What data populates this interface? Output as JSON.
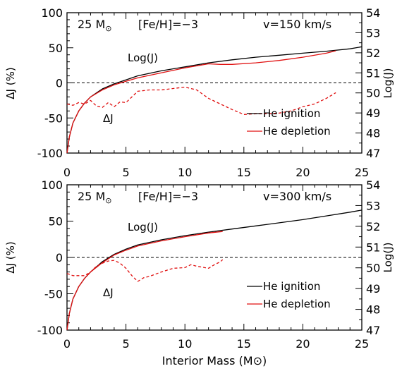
{
  "colors": {
    "axis": "#000000",
    "ignition": "#000000",
    "depletion": "#e01010",
    "zero_line": "#000000"
  },
  "chart_data": [
    {
      "type": "line",
      "panel_labels": {
        "mass": "25 M",
        "mass_symbol": "⊙",
        "metallicity": "[Fe/H]=−3",
        "velocity": "v=150 km/s"
      },
      "ylabel_left": "ΔJ (%)",
      "ylabel_right": "Log(J)",
      "xlabel": "",
      "xlim": [
        0,
        25
      ],
      "ylim_left": [
        -100,
        100
      ],
      "ylim_right": [
        47,
        54
      ],
      "x_ticks": [
        "0",
        "5",
        "10",
        "15",
        "20",
        "25"
      ],
      "left_ticks": [
        "-100",
        "-50",
        "0",
        "50",
        "100"
      ],
      "right_ticks": [
        "47",
        "48",
        "49",
        "50",
        "51",
        "52",
        "53",
        "54"
      ],
      "annotations": {
        "logj": "Log(J)",
        "deltaj": "ΔJ"
      },
      "legend": [
        {
          "label": "He ignition",
          "color": "#000000"
        },
        {
          "label": "He depletion",
          "color": "#e01010"
        }
      ],
      "series": [
        {
          "name": "He ignition",
          "axis": "right",
          "style": "solid",
          "color": "#000000",
          "x": [
            0,
            0.2,
            0.5,
            1,
            1.5,
            2,
            3,
            4,
            5,
            6,
            8,
            10,
            12,
            14,
            16,
            18,
            20,
            22,
            24,
            25
          ],
          "y": [
            47.0,
            47.8,
            48.5,
            49.1,
            49.5,
            49.8,
            50.2,
            50.45,
            50.65,
            50.85,
            51.1,
            51.3,
            51.5,
            51.65,
            51.78,
            51.88,
            51.98,
            52.08,
            52.2,
            52.3
          ]
        },
        {
          "name": "He depletion",
          "axis": "right",
          "style": "solid",
          "color": "#e01010",
          "x": [
            0,
            0.2,
            0.5,
            1,
            1.5,
            2,
            3,
            4,
            5,
            6,
            8,
            10,
            12,
            13,
            14,
            16,
            18,
            20,
            22,
            22.8
          ],
          "y": [
            47.0,
            47.8,
            48.5,
            49.1,
            49.5,
            49.8,
            50.15,
            50.4,
            50.58,
            50.75,
            51.0,
            51.25,
            51.45,
            51.42,
            51.42,
            51.5,
            51.62,
            51.78,
            51.98,
            52.1
          ]
        },
        {
          "name": "ΔJ",
          "axis": "left",
          "style": "dashed",
          "color": "#e01010",
          "x": [
            0,
            0.5,
            1,
            1.5,
            2,
            2.5,
            3,
            3.5,
            4,
            4.5,
            5,
            5.5,
            6,
            7,
            8,
            9,
            10,
            11,
            12,
            13,
            14,
            15,
            16,
            17,
            18,
            19,
            20,
            21,
            22,
            22.8
          ],
          "y": [
            -30,
            -32,
            -28,
            -30,
            -25,
            -33,
            -35,
            -28,
            -34,
            -27,
            -28,
            -20,
            -12,
            -10,
            -10,
            -8,
            -6,
            -10,
            -22,
            -30,
            -38,
            -45,
            -44,
            -44,
            -43,
            -40,
            -34,
            -30,
            -22,
            -14
          ]
        }
      ]
    },
    {
      "type": "line",
      "panel_labels": {
        "mass": "25 M",
        "mass_symbol": "⊙",
        "metallicity": "[Fe/H]=−3",
        "velocity": "v=300 km/s"
      },
      "ylabel_left": "ΔJ (%)",
      "ylabel_right": "Log(J)",
      "xlabel": "Interior Mass (M⊙)",
      "xlim": [
        0,
        25
      ],
      "ylim_left": [
        -100,
        100
      ],
      "ylim_right": [
        47,
        54
      ],
      "x_ticks": [
        "0",
        "5",
        "10",
        "15",
        "20",
        "25"
      ],
      "left_ticks": [
        "-100",
        "-50",
        "0",
        "50",
        "100"
      ],
      "right_ticks": [
        "47",
        "48",
        "49",
        "50",
        "51",
        "52",
        "53",
        "54"
      ],
      "annotations": {
        "logj": "Log(J)",
        "deltaj": "ΔJ"
      },
      "legend": [
        {
          "label": "He ignition",
          "color": "#000000"
        },
        {
          "label": "He depletion",
          "color": "#e01010"
        }
      ],
      "series": [
        {
          "name": "He ignition",
          "axis": "right",
          "style": "solid",
          "color": "#000000",
          "x": [
            0,
            0.2,
            0.5,
            1,
            1.5,
            2,
            3,
            4,
            5,
            6,
            8,
            10,
            12,
            14,
            16,
            18,
            20,
            22,
            24,
            25
          ],
          "y": [
            47.0,
            47.8,
            48.5,
            49.1,
            49.5,
            49.8,
            50.3,
            50.65,
            50.9,
            51.1,
            51.35,
            51.55,
            51.72,
            51.87,
            52.02,
            52.17,
            52.32,
            52.5,
            52.68,
            52.78
          ]
        },
        {
          "name": "He depletion",
          "axis": "right",
          "style": "solid",
          "color": "#e01010",
          "x": [
            0,
            0.2,
            0.5,
            1,
            1.5,
            2,
            3,
            4,
            5,
            6,
            8,
            10,
            12,
            13.2
          ],
          "y": [
            47.0,
            47.8,
            48.5,
            49.1,
            49.5,
            49.8,
            50.25,
            50.62,
            50.85,
            51.05,
            51.3,
            51.5,
            51.68,
            51.75
          ]
        },
        {
          "name": "ΔJ",
          "axis": "left",
          "style": "dashed",
          "color": "#e01010",
          "x": [
            0,
            0.5,
            1,
            1.5,
            2,
            2.5,
            3,
            3.5,
            4,
            4.5,
            5,
            5.5,
            6,
            6.5,
            7,
            8,
            9,
            10,
            10.5,
            11,
            12,
            12.5,
            13,
            13.2
          ],
          "y": [
            -22,
            -25,
            -25,
            -25,
            -20,
            -12,
            -8,
            -5,
            -4,
            -8,
            -15,
            -25,
            -33,
            -28,
            -26,
            -20,
            -15,
            -14,
            -10,
            -12,
            -15,
            -10,
            -6,
            -3
          ]
        }
      ]
    }
  ]
}
